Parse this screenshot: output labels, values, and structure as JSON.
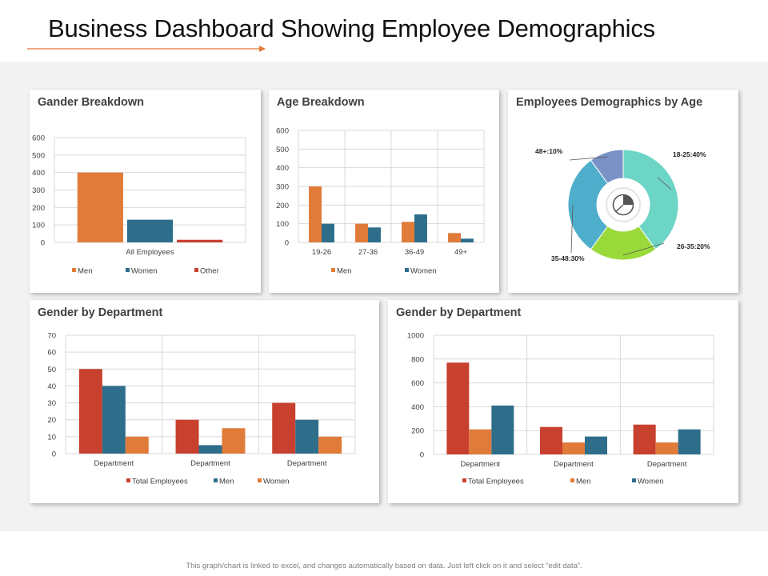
{
  "page": {
    "title": "Business Dashboard Showing Employee Demographics",
    "footer": "This graph/chart is linked to excel, and changes automatically based on data. Just left click on it and select “edit data”."
  },
  "colors": {
    "men": "#e07b39",
    "women": "#2e6e8a",
    "other": "#c8412e",
    "total": "#c8412e",
    "donut_18_25": "#6dd5c6",
    "donut_26_35": "#9ad93a",
    "donut_35_48": "#4eaecb",
    "donut_48_plus": "#7b92c6",
    "arrow": "#e07b39"
  },
  "chart_data": [
    {
      "id": "gender_breakdown",
      "type": "bar",
      "title": "Gander Breakdown",
      "categories": [
        "All Employees"
      ],
      "series": [
        {
          "name": "Men",
          "color_key": "men",
          "values": [
            400
          ]
        },
        {
          "name": "Women",
          "color_key": "women",
          "values": [
            130
          ]
        },
        {
          "name": "Other",
          "color_key": "other",
          "values": [
            15
          ]
        }
      ],
      "ylim": [
        0,
        600
      ],
      "yticks": [
        0,
        100,
        200,
        300,
        400,
        500,
        600
      ],
      "xlabel": "",
      "ylabel": "",
      "grid": true,
      "legend": "bottom"
    },
    {
      "id": "age_breakdown",
      "type": "bar",
      "title": "Age Breakdown",
      "categories": [
        "19-26",
        "27-36",
        "36-49",
        "49+"
      ],
      "series": [
        {
          "name": "Men",
          "color_key": "men",
          "values": [
            300,
            100,
            110,
            50
          ]
        },
        {
          "name": "Women",
          "color_key": "women",
          "values": [
            100,
            80,
            150,
            20
          ]
        }
      ],
      "ylim": [
        0,
        600
      ],
      "yticks": [
        0,
        100,
        200,
        300,
        400,
        500,
        600
      ],
      "xlabel": "",
      "ylabel": "",
      "grid": true,
      "legend": "bottom"
    },
    {
      "id": "demographics_by_age",
      "type": "pie",
      "subtype": "donut",
      "title": "Employees Demographics by Age",
      "slices": [
        {
          "label": "18-25:40%",
          "value": 40,
          "color_key": "donut_18_25"
        },
        {
          "label": "26-35:20%",
          "value": 20,
          "color_key": "donut_26_35"
        },
        {
          "label": "35-48:30%",
          "value": 30,
          "color_key": "donut_35_48"
        },
        {
          "label": "48+:10%",
          "value": 10,
          "color_key": "donut_48_plus"
        }
      ],
      "center_icon": "pie-chart-icon"
    },
    {
      "id": "gender_by_department_1",
      "type": "bar",
      "title": "Gender by Department",
      "categories": [
        "Department",
        "Department",
        "Department"
      ],
      "series": [
        {
          "name": "Total Employees",
          "color_key": "total",
          "values": [
            50,
            20,
            30
          ]
        },
        {
          "name": "Men",
          "color_key": "women",
          "values": [
            40,
            5,
            20
          ]
        },
        {
          "name": "Women",
          "color_key": "men",
          "values": [
            10,
            15,
            10
          ]
        }
      ],
      "ylim": [
        0,
        70
      ],
      "yticks": [
        0,
        10,
        20,
        30,
        40,
        50,
        60,
        70
      ],
      "xlabel": "",
      "ylabel": "",
      "grid": true,
      "legend": "bottom"
    },
    {
      "id": "gender_by_department_2",
      "type": "bar",
      "title": "Gender by Department",
      "categories": [
        "Department",
        "Department",
        "Department"
      ],
      "series": [
        {
          "name": "Total Employees",
          "color_key": "total",
          "values": [
            770,
            230,
            250
          ]
        },
        {
          "name": "Men",
          "color_key": "men",
          "values": [
            210,
            100,
            100
          ]
        },
        {
          "name": "Women",
          "color_key": "women",
          "values": [
            410,
            150,
            210
          ]
        }
      ],
      "ylim": [
        0,
        1000
      ],
      "yticks": [
        0,
        200,
        400,
        600,
        800,
        1000
      ],
      "xlabel": "",
      "ylabel": "",
      "grid": true,
      "legend": "bottom"
    }
  ]
}
